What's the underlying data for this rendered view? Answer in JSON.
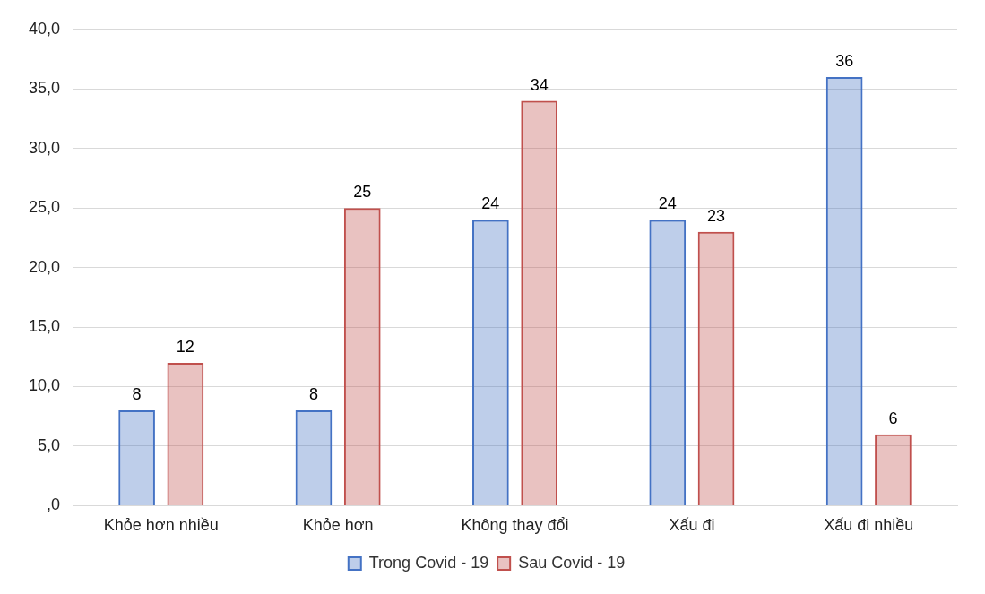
{
  "chart_data": {
    "type": "bar",
    "categories": [
      "Khỏe hơn nhiều",
      "Khỏe hơn",
      "Không thay đổi",
      "Xấu đi",
      "Xấu đi nhiều"
    ],
    "series": [
      {
        "name": "Trong Covid - 19",
        "color": "#4472c4",
        "values": [
          8,
          8,
          24,
          24,
          36
        ]
      },
      {
        "name": "Sau Covid - 19",
        "color": "#c0504d",
        "values": [
          12,
          25,
          34,
          23,
          6
        ]
      }
    ],
    "ylim": [
      0,
      40
    ],
    "yticks": [
      {
        "value": 0,
        "label": ",0"
      },
      {
        "value": 5,
        "label": "5,0"
      },
      {
        "value": 10,
        "label": "10,0"
      },
      {
        "value": 15,
        "label": "15,0"
      },
      {
        "value": 20,
        "label": "20,0"
      },
      {
        "value": 25,
        "label": "25,0"
      },
      {
        "value": 30,
        "label": "30,0"
      },
      {
        "value": 35,
        "label": "35,0"
      },
      {
        "value": 40,
        "label": "40,0"
      }
    ],
    "grid": "y",
    "legend": "bottom",
    "data_labels": true
  }
}
